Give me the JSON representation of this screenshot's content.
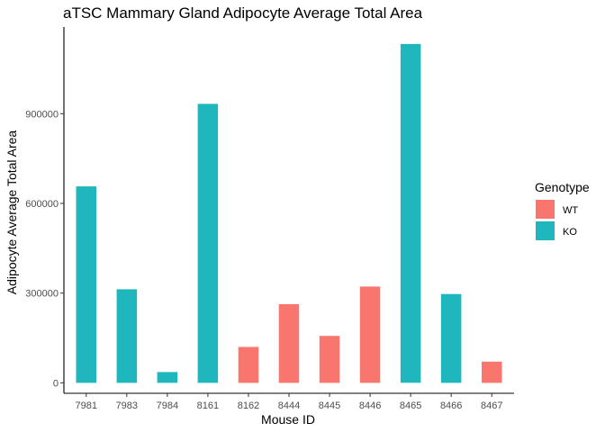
{
  "chart_data": {
    "type": "bar",
    "title": "aTSC Mammary Gland Adipocyte Average Total Area",
    "xlabel": "Mouse ID",
    "ylabel": "Adipocyte Average Total Area",
    "categories": [
      "7981",
      "7983",
      "7984",
      "8161",
      "8162",
      "8444",
      "8445",
      "8446",
      "8465",
      "8466",
      "8467"
    ],
    "values": [
      657000,
      313000,
      36000,
      933000,
      120000,
      263000,
      157000,
      322000,
      1133000,
      297000,
      71000
    ],
    "genotype": [
      "KO",
      "KO",
      "KO",
      "KO",
      "WT",
      "WT",
      "WT",
      "WT",
      "KO",
      "KO",
      "WT"
    ],
    "ylim": [
      -35000,
      1190000
    ],
    "yticks": [
      0,
      300000,
      600000,
      900000
    ],
    "ytick_labels": [
      "0",
      "300000",
      "600000",
      "900000"
    ],
    "grid": false,
    "legend": {
      "title": "Genotype",
      "position": "right",
      "entries": [
        {
          "label": "WT",
          "color": "#F8766D"
        },
        {
          "label": "KO",
          "color": "#1FB7BD"
        }
      ]
    }
  }
}
